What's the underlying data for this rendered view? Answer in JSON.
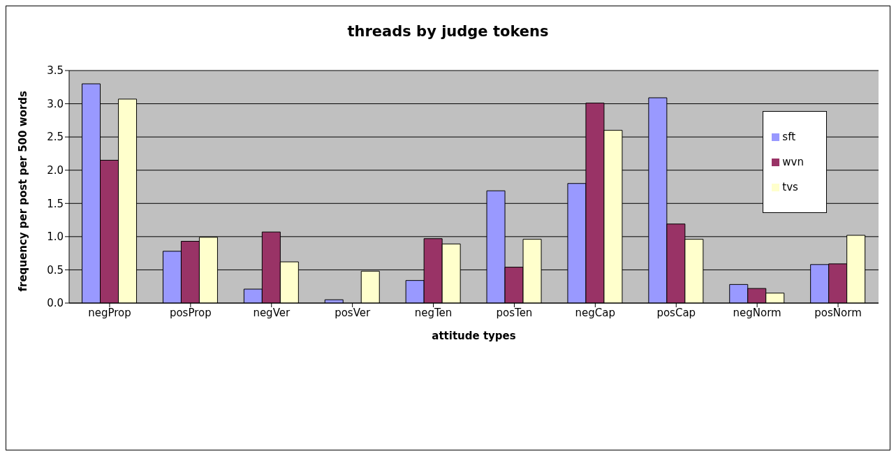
{
  "chart_data": {
    "type": "bar",
    "title": "threads by judge tokens",
    "xlabel": "attitude types",
    "ylabel": "frequency per post per 500 words",
    "categories": [
      "negProp",
      "posProp",
      "negVer",
      "posVer",
      "negTen",
      "posTen",
      "negCap",
      "posCap",
      "negNorm",
      "posNorm"
    ],
    "series": [
      {
        "name": "sft",
        "color": "#9999ff",
        "values": [
          3.3,
          0.78,
          0.21,
          0.05,
          0.34,
          1.69,
          1.8,
          3.09,
          0.28,
          0.58
        ]
      },
      {
        "name": "wvn",
        "color": "#993366",
        "values": [
          2.15,
          0.93,
          1.07,
          0,
          0.97,
          0.54,
          3.01,
          1.19,
          0.22,
          0.59
        ]
      },
      {
        "name": "tvs",
        "color": "#ffffcc",
        "values": [
          3.07,
          0.99,
          0.62,
          0.48,
          0.89,
          0.96,
          2.6,
          0.96,
          0.15,
          1.02
        ]
      }
    ],
    "ylim": [
      0,
      3.5
    ],
    "yticks": [
      {
        "value": 0,
        "label": "0.0"
      },
      {
        "value": 0.5,
        "label": "0.5"
      },
      {
        "value": 1,
        "label": "1.0"
      },
      {
        "value": 1.5,
        "label": "1.5"
      },
      {
        "value": 2,
        "label": "2.0"
      },
      {
        "value": 2.5,
        "label": "2.5"
      },
      {
        "value": 3,
        "label": "3.0"
      },
      {
        "value": 3.5,
        "label": "3.5"
      }
    ],
    "grid": "y",
    "legend": "right"
  }
}
